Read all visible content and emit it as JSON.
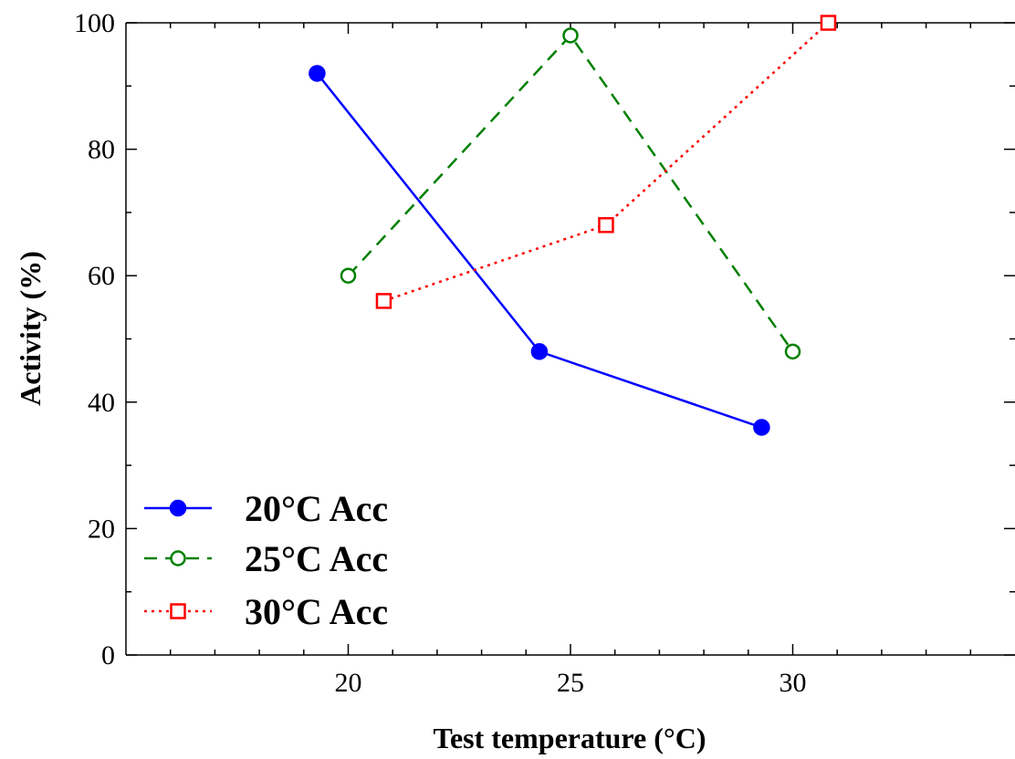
{
  "chart_data": {
    "type": "line",
    "title": "",
    "xlabel": "Test temperature (°C)",
    "ylabel": "Activity (%)",
    "xlim": [
      15,
      35
    ],
    "ylim": [
      0,
      100
    ],
    "xticks": [
      20,
      25,
      30
    ],
    "yticks": [
      0,
      20,
      40,
      60,
      80,
      100
    ],
    "grid": false,
    "legend": "bottom-left",
    "series": [
      {
        "name": "20°C Acc",
        "color": "#0000ff",
        "dash": "solid",
        "marker": "filled-circle",
        "points": [
          {
            "x": 19.3,
            "y": 92
          },
          {
            "x": 24.3,
            "y": 48
          },
          {
            "x": 29.3,
            "y": 36
          }
        ]
      },
      {
        "name": "25°C Acc",
        "color": "#008000",
        "dash": "dashed",
        "marker": "open-circle",
        "points": [
          {
            "x": 20,
            "y": 60
          },
          {
            "x": 25,
            "y": 98
          },
          {
            "x": 30,
            "y": 48
          }
        ]
      },
      {
        "name": "30°C Acc",
        "color": "#ff0000",
        "dash": "dotted",
        "marker": "open-square",
        "points": [
          {
            "x": 20.8,
            "y": 56
          },
          {
            "x": 25.8,
            "y": 68
          },
          {
            "x": 30.8,
            "y": 100
          }
        ]
      }
    ]
  }
}
